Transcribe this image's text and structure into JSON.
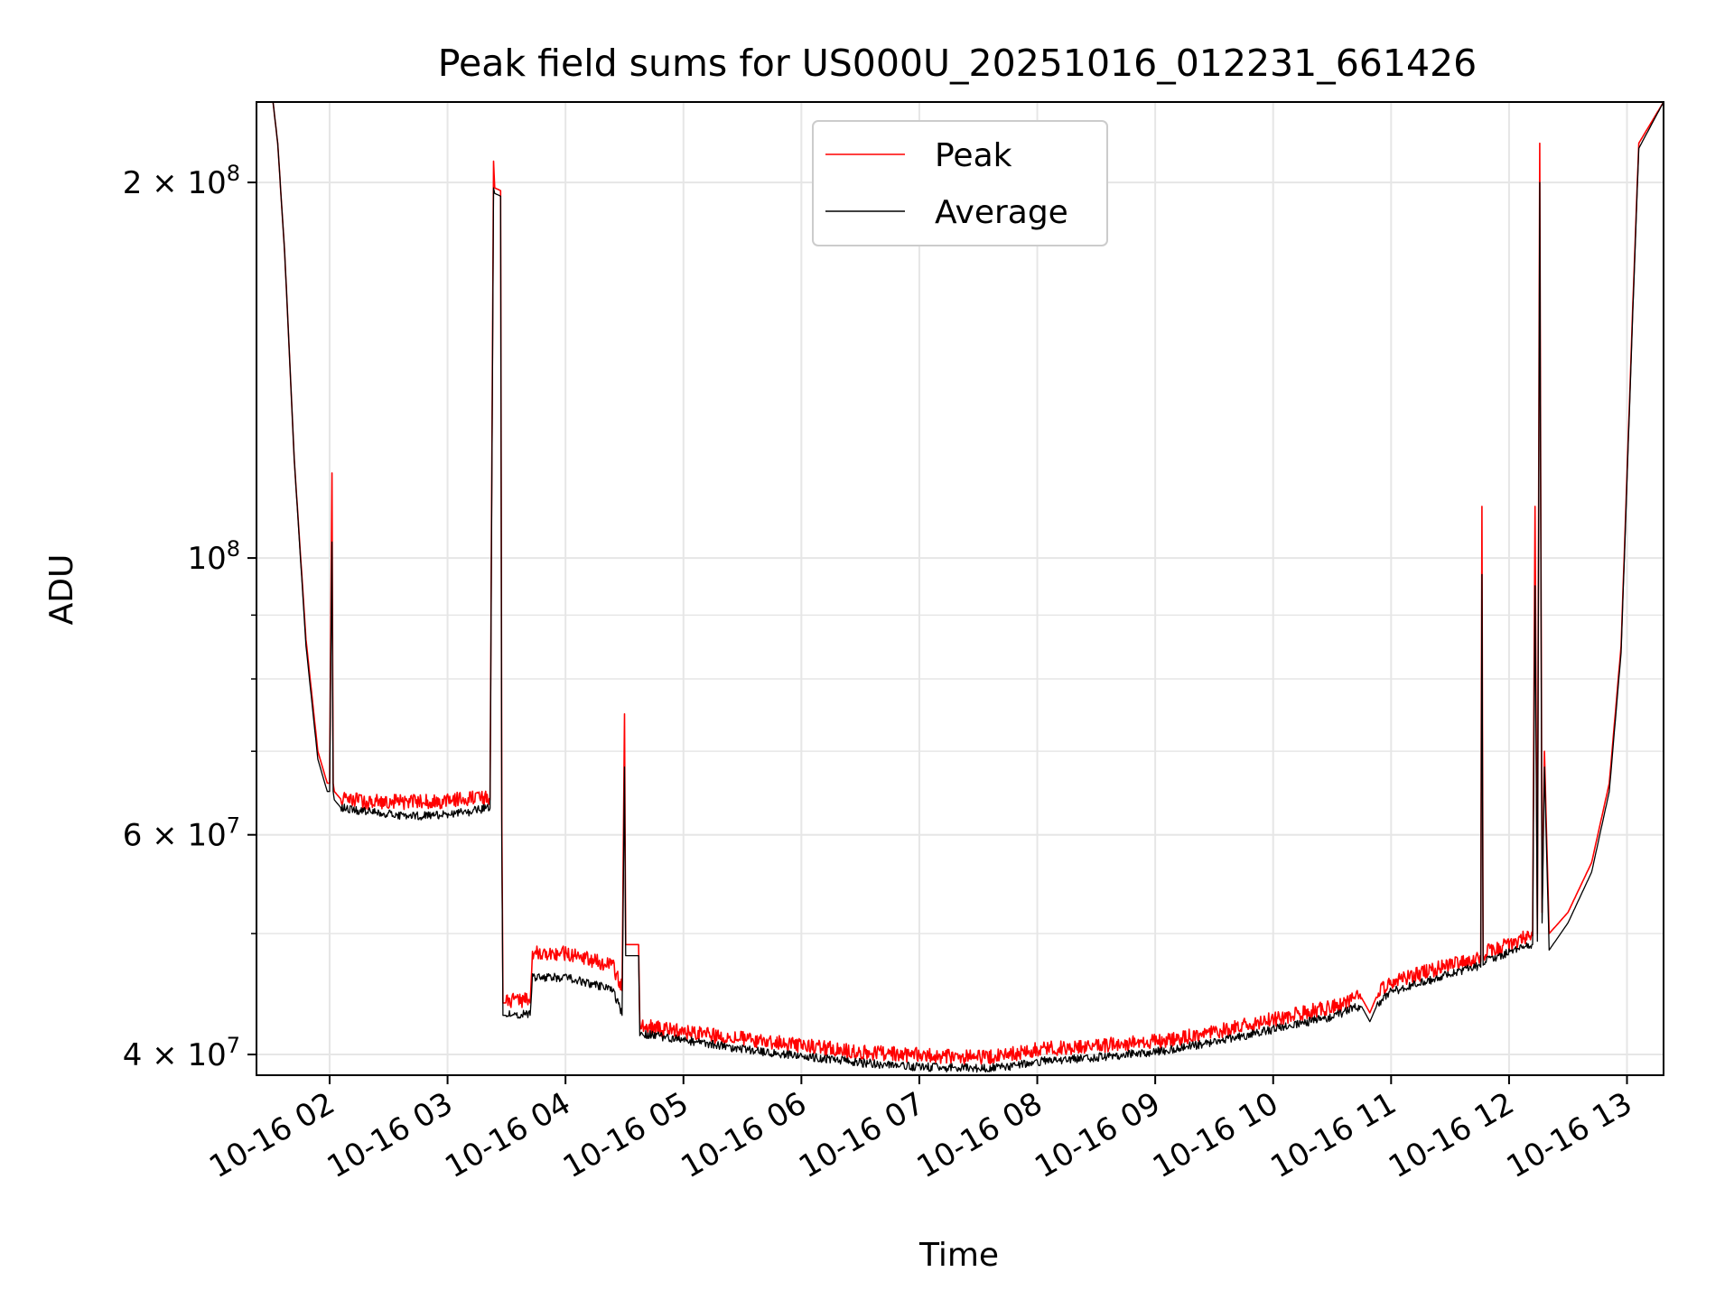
{
  "colors": {
    "peak": "#ff0000",
    "average": "#000000",
    "grid": "#e6e6e6",
    "axis": "#000000"
  },
  "chart_data": {
    "type": "line",
    "title": "Peak field sums for US000U_20251016_012231_661426",
    "xlabel": "Time",
    "ylabel": "ADU",
    "yscale": "log",
    "grid": true,
    "legend_position": "top-center",
    "x_unit": "hours since 2025-10-16 00:00",
    "xlim": [
      1.38,
      13.31
    ],
    "ylim": [
      38500000,
      232000000
    ],
    "x_ticks": [
      {
        "value": 2,
        "label": "10-16 02"
      },
      {
        "value": 3,
        "label": "10-16 03"
      },
      {
        "value": 4,
        "label": "10-16 04"
      },
      {
        "value": 5,
        "label": "10-16 05"
      },
      {
        "value": 6,
        "label": "10-16 06"
      },
      {
        "value": 7,
        "label": "10-16 07"
      },
      {
        "value": 8,
        "label": "10-16 08"
      },
      {
        "value": 9,
        "label": "10-16 09"
      },
      {
        "value": 10,
        "label": "10-16 10"
      },
      {
        "value": 11,
        "label": "10-16 11"
      },
      {
        "value": 12,
        "label": "10-16 12"
      },
      {
        "value": 13,
        "label": "10-16 13"
      }
    ],
    "y_major_ticks": [
      {
        "value": 40000000,
        "mantissa": "4",
        "exponent": "7"
      },
      {
        "value": 60000000,
        "mantissa": "6",
        "exponent": "7"
      },
      {
        "value": 100000000,
        "mantissa": "",
        "exponent": "8"
      },
      {
        "value": 200000000,
        "mantissa": "2",
        "exponent": "8"
      }
    ],
    "y_minor_ticks": [
      50000000,
      70000000,
      80000000,
      90000000,
      300000000
    ],
    "series": [
      {
        "name": "Peak",
        "color": "#ff0000",
        "x": [
          1.38,
          1.52,
          1.56,
          1.62,
          1.7,
          1.8,
          1.9,
          1.98,
          2.0,
          2.02,
          2.03,
          2.04,
          2.1,
          2.3,
          2.6,
          2.9,
          3.2,
          3.36,
          3.39,
          3.4,
          3.45,
          3.46,
          3.47,
          3.5,
          3.7,
          3.72,
          4.0,
          4.2,
          4.4,
          4.48,
          4.5,
          4.51,
          4.52,
          4.55,
          4.62,
          4.63,
          5.0,
          5.5,
          6.0,
          6.5,
          7.0,
          7.5,
          7.75,
          8.0,
          8.5,
          9.0,
          9.5,
          10.0,
          10.5,
          10.75,
          10.82,
          10.88,
          11.0,
          11.5,
          11.76,
          11.77,
          11.78,
          11.9,
          12.1,
          12.2,
          12.22,
          12.24,
          12.26,
          12.28,
          12.3,
          12.34,
          12.5,
          12.7,
          12.85,
          12.95,
          13.05,
          13.1,
          13.31
        ],
        "y": [
          232000000,
          232000000,
          215000000,
          175000000,
          120000000,
          86000000,
          70000000,
          66000000,
          66000000,
          117000000,
          66000000,
          65000000,
          64000000,
          63500000,
          63500000,
          63500000,
          64000000,
          64000000,
          208000000,
          198000000,
          197000000,
          62000000,
          44000000,
          44000000,
          44000000,
          48000000,
          48000000,
          47500000,
          47000000,
          45000000,
          75000000,
          49000000,
          49000000,
          49000000,
          49000000,
          42000000,
          41500000,
          41000000,
          40500000,
          40000000,
          39800000,
          39600000,
          39800000,
          40200000,
          40500000,
          40800000,
          41500000,
          42500000,
          43500000,
          44400000,
          43200000,
          44600000,
          45500000,
          47000000,
          47500000,
          110000000,
          48000000,
          48500000,
          49200000,
          49800000,
          110000000,
          50000000,
          215000000,
          52000000,
          70000000,
          50000000,
          52000000,
          57000000,
          66000000,
          85000000,
          160000000,
          215000000,
          232000000
        ]
      },
      {
        "name": "Average",
        "color": "#000000",
        "x": [
          1.38,
          1.52,
          1.56,
          1.62,
          1.7,
          1.8,
          1.9,
          1.98,
          2.0,
          2.02,
          2.03,
          2.04,
          2.1,
          2.3,
          2.6,
          2.9,
          3.2,
          3.36,
          3.39,
          3.4,
          3.45,
          3.46,
          3.47,
          3.5,
          3.7,
          3.72,
          4.0,
          4.2,
          4.4,
          4.48,
          4.5,
          4.51,
          4.52,
          4.55,
          4.62,
          4.63,
          5.0,
          5.5,
          6.0,
          6.5,
          7.0,
          7.5,
          7.75,
          8.0,
          8.5,
          9.0,
          9.5,
          10.0,
          10.5,
          10.75,
          10.82,
          10.88,
          11.0,
          11.5,
          11.76,
          11.77,
          11.78,
          11.9,
          12.1,
          12.2,
          12.22,
          12.24,
          12.26,
          12.28,
          12.3,
          12.34,
          12.5,
          12.7,
          12.85,
          12.95,
          13.05,
          13.1,
          13.31
        ],
        "y": [
          232000000,
          232000000,
          215000000,
          175000000,
          120000000,
          85000000,
          69000000,
          65000000,
          65000000,
          103000000,
          65000000,
          64000000,
          63000000,
          62500000,
          62000000,
          62000000,
          62500000,
          63000000,
          198000000,
          196000000,
          195000000,
          59000000,
          43000000,
          43000000,
          43000000,
          46000000,
          46000000,
          45500000,
          45000000,
          43000000,
          68000000,
          48000000,
          48000000,
          48000000,
          48000000,
          41500000,
          41000000,
          40300000,
          39800000,
          39300000,
          39000000,
          38900000,
          39000000,
          39400000,
          39700000,
          40100000,
          40800000,
          41800000,
          42800000,
          43700000,
          42500000,
          43800000,
          44800000,
          46300000,
          47000000,
          97000000,
          47300000,
          47800000,
          48500000,
          49000000,
          95000000,
          49300000,
          200000000,
          51000000,
          68000000,
          48500000,
          51000000,
          56000000,
          65000000,
          84000000,
          158000000,
          213000000,
          232000000
        ]
      }
    ]
  }
}
